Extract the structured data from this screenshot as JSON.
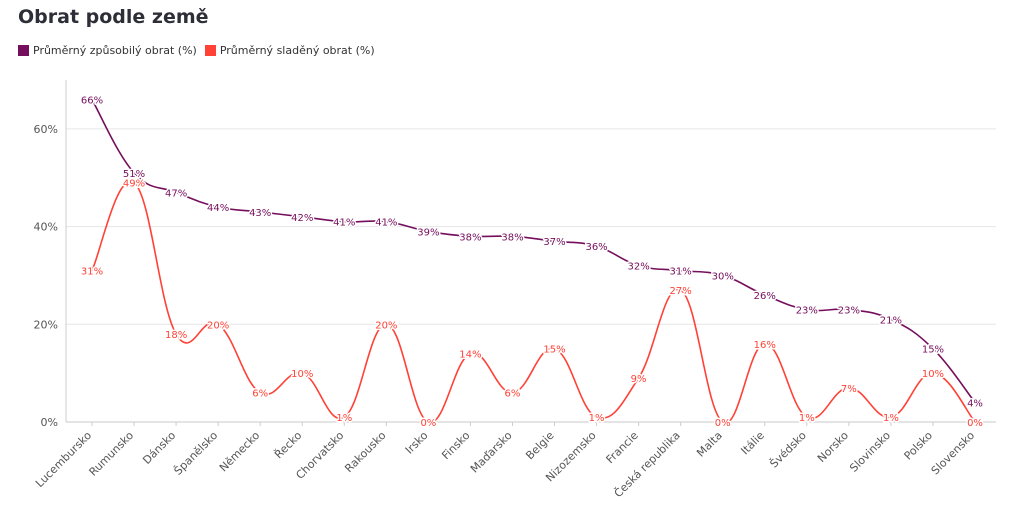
{
  "title": "Obrat podle země",
  "legend": [
    {
      "label": "Průměrný způsobilý obrat (%)",
      "color": "#750e5c"
    },
    {
      "label": "Průměrný sladěný obrat (%)",
      "color": "#ff4136"
    }
  ],
  "chart_data": {
    "type": "line",
    "title": "Obrat podle země",
    "xlabel": "",
    "ylabel": "",
    "ylim": [
      0,
      70
    ],
    "yticks": [
      {
        "value": 0,
        "label": "0%"
      },
      {
        "value": 20,
        "label": "20%"
      },
      {
        "value": 40,
        "label": "40%"
      },
      {
        "value": 60,
        "label": "60%"
      }
    ],
    "grid": true,
    "legend_position": "top-left",
    "categories": [
      "Lucembursko",
      "Rumunsko",
      "Dánsko",
      "Španělsko",
      "Německo",
      "Řecko",
      "Chorvatsko",
      "Rakousko",
      "Irsko",
      "Finsko",
      "Maďarsko",
      "Belgie",
      "Nizozemsko",
      "Francie",
      "Česká republika",
      "Malta",
      "Itálie",
      "Švédsko",
      "Norsko",
      "Slovinsko",
      "Polsko",
      "Slovensko"
    ],
    "series": [
      {
        "name": "Průměrný způsobilý obrat (%)",
        "color": "#750e5c",
        "values": [
          66,
          51,
          47,
          44,
          43,
          42,
          41,
          41,
          39,
          38,
          38,
          37,
          36,
          32,
          31,
          30,
          26,
          23,
          23,
          21,
          15,
          4
        ],
        "labels": [
          "66%",
          "51%",
          "47%",
          "44%",
          "43%",
          "42%",
          "41%",
          "41%",
          "39%",
          "38%",
          "38%",
          "37%",
          "36%",
          "32%",
          "31%",
          "30%",
          "26%",
          "23%",
          "23%",
          "21%",
          "15%",
          "4%"
        ]
      },
      {
        "name": "Průměrný sladěný obrat (%)",
        "color": "#ff4136",
        "values": [
          31,
          49,
          18,
          20,
          6,
          10,
          1,
          20,
          0,
          14,
          6,
          15,
          1,
          9,
          27,
          0,
          16,
          1,
          7,
          1,
          10,
          0
        ],
        "labels": [
          "31%",
          "49%",
          "18%",
          "20%",
          "6%",
          "10%",
          "1%",
          "20%",
          "0%",
          "14%",
          "6%",
          "15%",
          "1%",
          "9%",
          "27%",
          "0%",
          "16%",
          "1%",
          "7%",
          "1%",
          "10%",
          "0%"
        ]
      }
    ]
  }
}
